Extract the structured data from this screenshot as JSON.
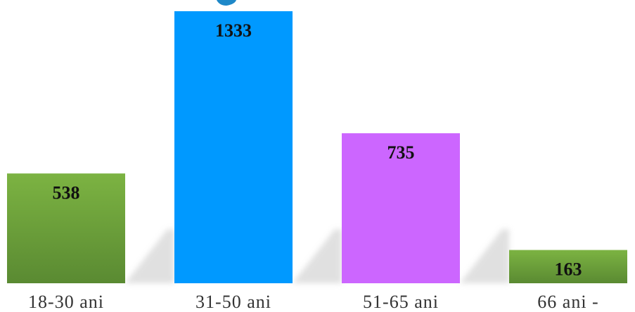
{
  "chart_data": {
    "type": "bar",
    "categories": [
      "18-30 ani",
      "31-50 ani",
      "51-65 ani",
      "66 ani -"
    ],
    "values": [
      538,
      1333,
      735,
      163
    ],
    "ylim": [
      0,
      1333
    ],
    "grid": false,
    "data_labels": true,
    "colors": {
      "18-30 ani": "#6a9a3c",
      "31-50 ani": "#0099ff",
      "51-65 ani": "#cc66ff",
      "66 ani -": "#6a9a3c"
    },
    "title_accent_color": "#1e88c8"
  }
}
